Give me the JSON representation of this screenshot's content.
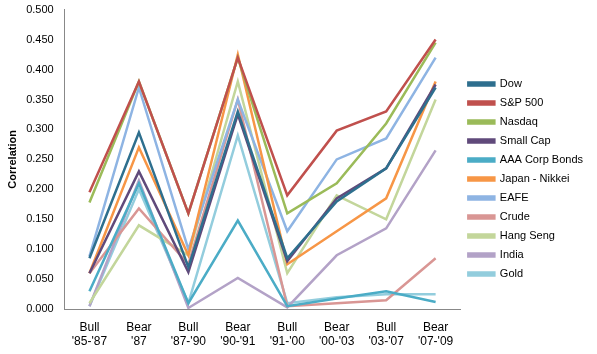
{
  "chart_data": {
    "type": "line",
    "y_label": "Correlation",
    "categories": [
      "Bull '85-'87",
      "Bear '87",
      "Bull '87-'90",
      "Bear '90-'91",
      "Bull '91-'00",
      "Bear '00-'03",
      "Bull '03-'07",
      "Bear '07-'09"
    ],
    "series": [
      {
        "name": "Dow",
        "color": "#2E6F8E",
        "values": [
          0.085,
          0.295,
          0.07,
          0.33,
          0.085,
          0.18,
          0.235,
          0.37
        ]
      },
      {
        "name": "S&P 500",
        "color": "#C0504D",
        "values": [
          0.195,
          0.38,
          0.16,
          0.42,
          0.19,
          0.298,
          0.33,
          0.45
        ]
      },
      {
        "name": "Nasdaq",
        "color": "#9BBB59",
        "values": [
          0.178,
          0.38,
          0.16,
          0.42,
          0.16,
          0.21,
          0.31,
          0.445
        ]
      },
      {
        "name": "Small Cap",
        "color": "#604A7B",
        "values": [
          0.06,
          0.23,
          0.062,
          0.325,
          0.08,
          0.185,
          0.235,
          0.375
        ]
      },
      {
        "name": "AAA Corp Bonds",
        "color": "#4BACC6",
        "values": [
          0.03,
          0.21,
          0.01,
          0.148,
          0.005,
          0.018,
          0.03,
          0.012
        ]
      },
      {
        "name": "Japan - Nikkei",
        "color": "#F79646",
        "values": [
          0.06,
          0.27,
          0.09,
          0.425,
          0.075,
          0.13,
          0.185,
          0.38
        ]
      },
      {
        "name": "EAFE",
        "color": "#8EB4E3",
        "values": [
          0.088,
          0.37,
          0.1,
          0.35,
          0.13,
          0.25,
          0.285,
          0.42
        ]
      },
      {
        "name": "Crude",
        "color": "#D99694",
        "values": [
          0.06,
          0.168,
          0.075,
          0.35,
          0.005,
          0.01,
          0.015,
          0.085
        ]
      },
      {
        "name": "Hang Seng",
        "color": "#C3D69B",
        "values": [
          0.01,
          0.14,
          0.09,
          0.38,
          0.06,
          0.19,
          0.15,
          0.35
        ]
      },
      {
        "name": "India",
        "color": "#B3A2C7",
        "values": [
          0.005,
          0.215,
          0.002,
          0.052,
          0.003,
          0.09,
          0.135,
          0.265
        ]
      },
      {
        "name": "Gold",
        "color": "#93CDDD",
        "values": [
          0.005,
          0.2,
          0.01,
          0.29,
          0.01,
          0.02,
          0.025,
          0.025
        ]
      }
    ],
    "ylim": [
      0,
      0.5
    ],
    "yticks": [
      {
        "value": 0,
        "label": "0.000"
      },
      {
        "value": 0.05,
        "label": "0.050"
      },
      {
        "value": 0.1,
        "label": "0.100"
      },
      {
        "value": 0.15,
        "label": "0.150"
      },
      {
        "value": 0.2,
        "label": "0.200"
      },
      {
        "value": 0.25,
        "label": "0.250"
      },
      {
        "value": 0.3,
        "label": "0.300"
      },
      {
        "value": 0.35,
        "label": "0.350"
      },
      {
        "value": 0.4,
        "label": "0.400"
      },
      {
        "value": 0.45,
        "label": "0.450"
      },
      {
        "value": 0.5,
        "label": "0.500"
      }
    ],
    "grid": false,
    "legend": "right"
  }
}
